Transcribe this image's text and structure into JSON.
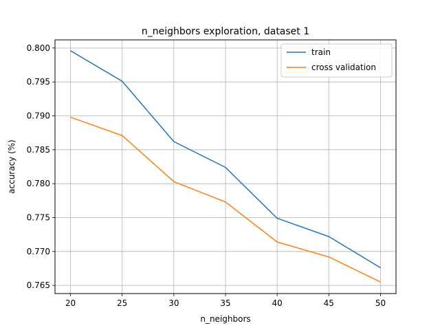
{
  "chart_data": {
    "type": "line",
    "title": "n_neighbors exploration, dataset 1",
    "xlabel": "n_neighbors",
    "ylabel": "accuracy (%)",
    "x": [
      20,
      25,
      30,
      35,
      40,
      45,
      50
    ],
    "xticks": [
      20,
      25,
      30,
      35,
      40,
      45,
      50
    ],
    "yticks": [
      0.765,
      0.77,
      0.775,
      0.78,
      0.785,
      0.79,
      0.795,
      0.8
    ],
    "xlim": [
      18.5,
      51.5
    ],
    "ylim": [
      0.7638,
      0.8012
    ],
    "grid": true,
    "legend_position": "top-right",
    "series": [
      {
        "name": "train",
        "color": "#1f77b4",
        "values": [
          0.7996,
          0.7951,
          0.7862,
          0.7824,
          0.7749,
          0.7722,
          0.7676
        ]
      },
      {
        "name": "cross validation",
        "color": "#ff7f0e",
        "values": [
          0.7898,
          0.7871,
          0.7803,
          0.7773,
          0.7714,
          0.7692,
          0.7655
        ]
      }
    ]
  }
}
